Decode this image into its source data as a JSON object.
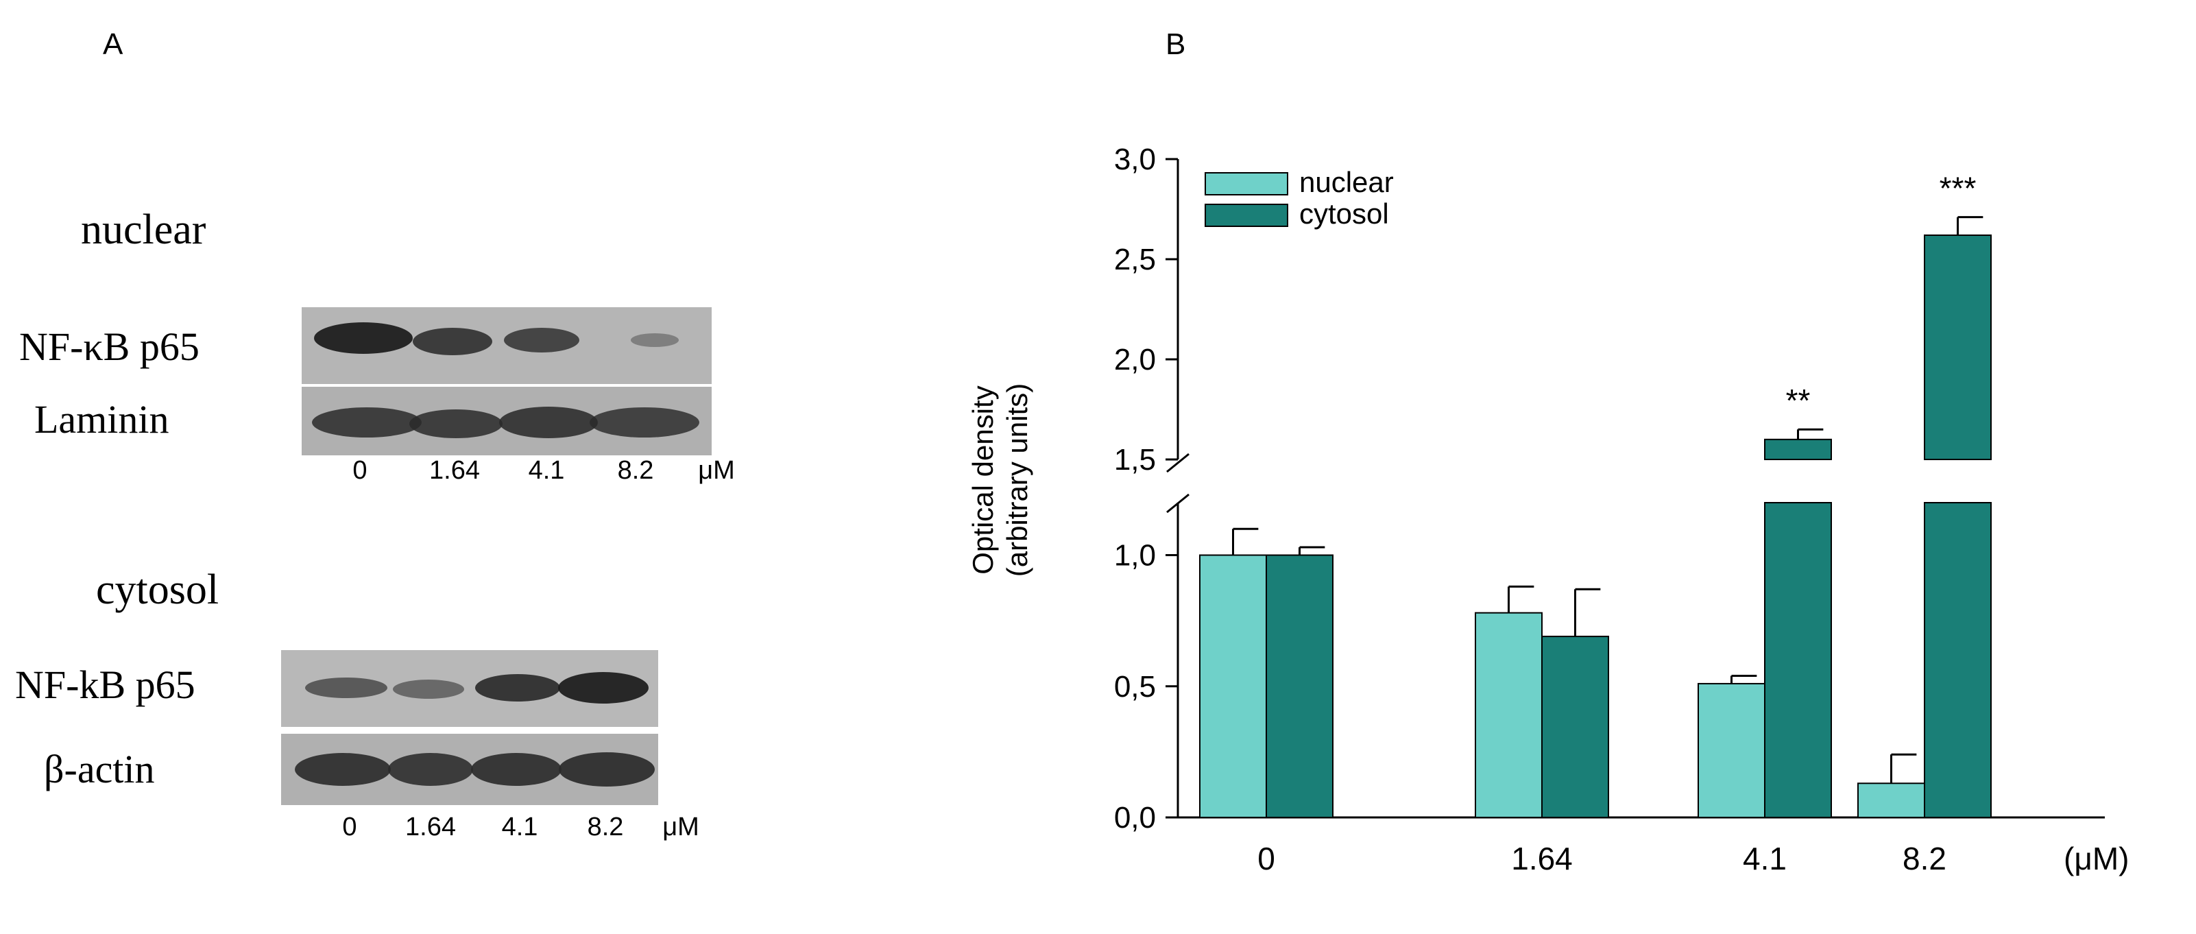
{
  "panel_a": {
    "label": "A",
    "nuclear_block": {
      "title": "nuclear",
      "rows": [
        "NF-κB p65",
        "Laminin"
      ],
      "lanes": [
        "0",
        "1.64",
        "4.1",
        "8.2"
      ],
      "unit": "μM",
      "band_intensity": {
        "NF-kB p65": [
          0.95,
          0.75,
          0.7,
          0.2
        ],
        "Laminin": [
          0.85,
          0.85,
          0.88,
          0.82
        ]
      }
    },
    "cytosol_block": {
      "title": "cytosol",
      "rows": [
        "NF-kB p65",
        "β-actin"
      ],
      "lanes": [
        "0",
        "1.64",
        "4.1",
        "8.2"
      ],
      "unit": "μM",
      "band_intensity": {
        "NF-kB p65": [
          0.55,
          0.45,
          0.8,
          0.95
        ],
        "beta-actin": [
          0.9,
          0.88,
          0.9,
          0.92
        ]
      }
    }
  },
  "panel_b": {
    "label": "B"
  },
  "chart_data": {
    "type": "bar",
    "title": "",
    "xlabel": "(μM)",
    "ylabel": [
      "Optical density",
      "(arbitrary units)"
    ],
    "categories": [
      "0",
      "1.64",
      "4.1",
      "8.2"
    ],
    "series": [
      {
        "name": "nuclear",
        "color": "#6fd1c9",
        "values": [
          1.0,
          0.78,
          0.51,
          0.13
        ],
        "errors": [
          0.1,
          0.1,
          0.03,
          0.11
        ]
      },
      {
        "name": "cytosol",
        "color": "#1a7f77",
        "values": [
          1.0,
          0.69,
          1.6,
          2.62
        ],
        "errors": [
          0.03,
          0.18,
          0.05,
          0.09
        ]
      }
    ],
    "significance": [
      {
        "category": "4.1",
        "series": "cytosol",
        "text": "**"
      },
      {
        "category": "8.2",
        "series": "cytosol",
        "text": "***"
      }
    ],
    "axis_break": [
      1.2,
      1.5
    ],
    "lower_range": [
      0.0,
      1.2
    ],
    "upper_range": [
      1.5,
      3.0
    ],
    "lower_ticks": [
      "0,0",
      "0,5",
      "1,0"
    ],
    "upper_ticks": [
      "1,5",
      "2,0",
      "2,5",
      "3,0"
    ],
    "legend": "top-left"
  }
}
